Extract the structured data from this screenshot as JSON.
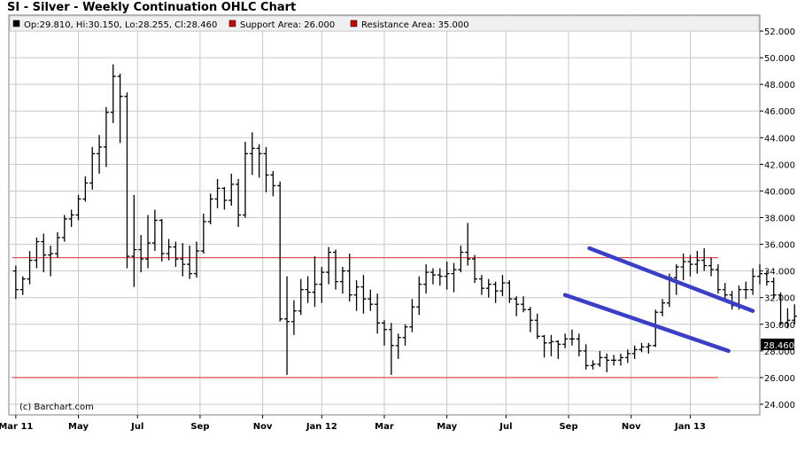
{
  "title": "SI - Silver - Weekly Continuation OHLC Chart",
  "legend": [
    {
      "color": "#000000",
      "text": "Op:29.810, Hi:30.150, Lo:28.255, Cl:28.460"
    },
    {
      "color": "#cc0000",
      "text": "Support Area: 26.000"
    },
    {
      "color": "#cc0000",
      "text": "Resistance Area: 35.000"
    }
  ],
  "credit": "(c) Barchart.com",
  "last_price_label": "28.460",
  "colors": {
    "bars": "#000000",
    "levels": "#e05050",
    "channel": "#3b3fc8",
    "grid": "#c8c8c8",
    "last_box": "#000000"
  },
  "chart_data": {
    "type": "ohlc",
    "x_tick_labels": [
      "Mar 11",
      "May",
      "Jul",
      "Sep",
      "Nov",
      "Jan 12",
      "Mar",
      "May",
      "Jul",
      "Sep",
      "Nov",
      "Jan 13"
    ],
    "x_tick_weeks": [
      0,
      9,
      17.5,
      26.5,
      35.5,
      44,
      53,
      62,
      70.5,
      79.5,
      88.5,
      97
    ],
    "y_tick_labels": [
      "24.000",
      "26.000",
      "28.000",
      "30.000",
      "32.000",
      "34.000",
      "36.000",
      "38.000",
      "40.000",
      "42.000",
      "44.000",
      "46.000",
      "48.000",
      "50.000",
      "52.000"
    ],
    "ylim": [
      23.2,
      53.2
    ],
    "weeks_range": [
      -1,
      107
    ],
    "support": 26.0,
    "resistance": 35.0,
    "level_end_week": 101,
    "channel_lines": [
      {
        "points": [
          [
            82.5,
            35.7
          ],
          [
            106,
            31
          ]
        ]
      },
      {
        "points": [
          [
            79,
            32.2
          ],
          [
            102.5,
            28
          ]
        ]
      }
    ],
    "bars": [
      [
        34.0,
        34.4,
        31.9,
        32.6
      ],
      [
        32.6,
        33.6,
        32.2,
        33.4
      ],
      [
        33.4,
        35.5,
        33.0,
        34.8
      ],
      [
        34.8,
        36.5,
        34.2,
        36.2
      ],
      [
        36.2,
        36.8,
        33.9,
        35.2
      ],
      [
        35.2,
        35.9,
        33.6,
        35.3
      ],
      [
        35.3,
        36.9,
        35.0,
        36.5
      ],
      [
        36.5,
        38.2,
        36.2,
        37.9
      ],
      [
        37.9,
        38.6,
        37.3,
        38.2
      ],
      [
        38.2,
        39.7,
        37.8,
        39.4
      ],
      [
        39.4,
        41.1,
        39.2,
        40.6
      ],
      [
        40.6,
        43.3,
        40.1,
        42.8
      ],
      [
        42.8,
        44.2,
        41.3,
        43.3
      ],
      [
        43.3,
        46.3,
        41.8,
        45.9
      ],
      [
        45.9,
        49.5,
        45.1,
        48.6
      ],
      [
        48.6,
        48.8,
        43.6,
        47.1
      ],
      [
        47.1,
        47.4,
        34.2,
        35.1
      ],
      [
        35.1,
        39.7,
        32.8,
        35.6
      ],
      [
        35.6,
        36.7,
        33.9,
        34.9
      ],
      [
        34.9,
        38.2,
        34.2,
        36.1
      ],
      [
        36.1,
        38.6,
        35.5,
        37.8
      ],
      [
        37.8,
        37.9,
        34.7,
        35.3
      ],
      [
        35.3,
        36.4,
        34.8,
        35.8
      ],
      [
        35.8,
        36.2,
        34.3,
        34.9
      ],
      [
        34.9,
        36.1,
        33.6,
        34.5
      ],
      [
        34.5,
        35.9,
        33.4,
        33.8
      ],
      [
        33.8,
        36.2,
        33.5,
        35.5
      ],
      [
        35.5,
        38.3,
        35.3,
        37.7
      ],
      [
        37.7,
        39.8,
        37.5,
        39.4
      ],
      [
        39.4,
        40.9,
        38.7,
        40.2
      ],
      [
        40.2,
        40.3,
        38.6,
        39.3
      ],
      [
        39.3,
        41.3,
        38.9,
        40.5
      ],
      [
        40.5,
        40.9,
        37.3,
        38.2
      ],
      [
        38.2,
        43.7,
        38.0,
        42.8
      ],
      [
        42.8,
        44.4,
        41.2,
        43.2
      ],
      [
        43.2,
        43.5,
        41.0,
        42.8
      ],
      [
        42.8,
        43.3,
        39.9,
        41.2
      ],
      [
        41.2,
        41.5,
        39.6,
        40.4
      ],
      [
        40.4,
        40.7,
        30.2,
        30.4
      ],
      [
        30.4,
        33.6,
        26.2,
        30.2
      ],
      [
        30.2,
        31.8,
        29.2,
        31.0
      ],
      [
        31.0,
        33.4,
        30.7,
        32.6
      ],
      [
        32.6,
        33.6,
        31.6,
        32.4
      ],
      [
        32.4,
        35.1,
        31.3,
        33.0
      ],
      [
        33.0,
        34.3,
        31.6,
        33.9
      ],
      [
        33.9,
        35.8,
        33.0,
        35.4
      ],
      [
        35.4,
        35.6,
        32.6,
        33.2
      ],
      [
        33.2,
        34.3,
        32.3,
        34.0
      ],
      [
        34.0,
        35.3,
        31.7,
        32.2
      ],
      [
        32.2,
        33.3,
        31.0,
        32.8
      ],
      [
        32.8,
        33.7,
        30.8,
        31.9
      ],
      [
        31.9,
        32.6,
        31.0,
        31.5
      ],
      [
        31.5,
        32.3,
        29.3,
        30.1
      ],
      [
        30.1,
        30.3,
        28.4,
        29.6
      ],
      [
        29.6,
        30.1,
        26.2,
        28.4
      ],
      [
        28.4,
        29.3,
        27.4,
        29.0
      ],
      [
        29.0,
        30.0,
        28.4,
        29.8
      ],
      [
        29.8,
        31.9,
        29.4,
        31.3
      ],
      [
        31.3,
        33.6,
        30.7,
        33.0
      ],
      [
        33.0,
        34.5,
        32.3,
        33.9
      ],
      [
        33.9,
        34.2,
        33.0,
        33.7
      ],
      [
        33.7,
        34.2,
        32.9,
        33.6
      ],
      [
        33.6,
        34.7,
        32.6,
        33.8
      ],
      [
        33.8,
        34.6,
        32.4,
        34.1
      ],
      [
        34.1,
        35.9,
        33.9,
        35.4
      ],
      [
        35.4,
        37.6,
        34.4,
        34.9
      ],
      [
        34.9,
        35.2,
        33.1,
        33.4
      ],
      [
        33.4,
        33.7,
        32.2,
        32.7
      ],
      [
        32.7,
        33.4,
        32.0,
        33.0
      ],
      [
        33.0,
        33.2,
        31.6,
        32.5
      ],
      [
        32.5,
        33.7,
        32.1,
        33.1
      ],
      [
        33.1,
        33.3,
        31.6,
        31.9
      ],
      [
        31.9,
        32.1,
        30.6,
        31.5
      ],
      [
        31.5,
        32.1,
        30.9,
        31.1
      ],
      [
        31.1,
        31.3,
        29.4,
        30.3
      ],
      [
        30.3,
        30.8,
        28.9,
        29.1
      ],
      [
        29.1,
        29.2,
        27.5,
        28.6
      ],
      [
        28.6,
        29.2,
        27.6,
        28.7
      ],
      [
        28.7,
        28.8,
        27.4,
        28.5
      ],
      [
        28.5,
        29.3,
        28.2,
        28.9
      ],
      [
        28.9,
        29.6,
        28.4,
        28.9
      ],
      [
        28.9,
        29.3,
        27.6,
        28.0
      ],
      [
        28.0,
        28.5,
        26.6,
        26.9
      ],
      [
        26.9,
        27.3,
        26.6,
        27.0
      ],
      [
        27.0,
        28.0,
        26.8,
        27.5
      ],
      [
        27.5,
        27.8,
        26.4,
        27.3
      ],
      [
        27.3,
        27.7,
        26.9,
        27.3
      ],
      [
        27.3,
        27.8,
        26.9,
        27.5
      ],
      [
        27.5,
        28.1,
        27.1,
        27.8
      ],
      [
        27.8,
        28.4,
        27.4,
        28.1
      ],
      [
        28.1,
        28.6,
        27.9,
        28.3
      ],
      [
        28.3,
        28.6,
        27.8,
        28.4
      ],
      [
        28.4,
        31.1,
        28.3,
        30.9
      ],
      [
        30.9,
        31.9,
        30.6,
        31.6
      ],
      [
        31.6,
        33.8,
        31.3,
        33.5
      ],
      [
        33.5,
        34.5,
        32.2,
        34.3
      ],
      [
        34.3,
        35.3,
        33.3,
        34.7
      ],
      [
        34.7,
        35.2,
        33.6,
        34.5
      ],
      [
        34.5,
        35.5,
        33.8,
        34.8
      ],
      [
        34.8,
        35.7,
        34.0,
        34.4
      ],
      [
        34.4,
        35.0,
        33.6,
        34.1
      ],
      [
        34.1,
        34.5,
        32.3,
        32.6
      ],
      [
        32.6,
        33.1,
        31.9,
        32.2
      ],
      [
        32.2,
        32.5,
        31.1,
        31.4
      ],
      [
        31.4,
        32.9,
        31.1,
        32.6
      ],
      [
        32.6,
        33.2,
        31.9,
        32.6
      ],
      [
        32.6,
        34.2,
        32.2,
        33.6
      ],
      [
        33.6,
        34.5,
        33.0,
        33.8
      ],
      [
        33.8,
        34.0,
        32.9,
        33.2
      ],
      [
        33.2,
        33.5,
        31.9,
        32.2
      ],
      [
        32.2,
        32.4,
        29.9,
        30.1
      ],
      [
        30.1,
        31.2,
        29.7,
        30.3
      ],
      [
        30.3,
        31.5,
        30.0,
        30.6
      ],
      [
        30.6,
        31.4,
        29.8,
        30.4
      ],
      [
        30.4,
        32.6,
        30.3,
        32.0
      ],
      [
        32.0,
        32.5,
        31.0,
        31.4
      ],
      [
        31.4,
        32.2,
        30.7,
        31.8
      ],
      [
        31.8,
        32.3,
        31.5,
        31.8
      ],
      [
        31.8,
        31.9,
        28.8,
        29.8
      ],
      [
        29.81,
        30.15,
        28.255,
        28.46
      ]
    ]
  }
}
